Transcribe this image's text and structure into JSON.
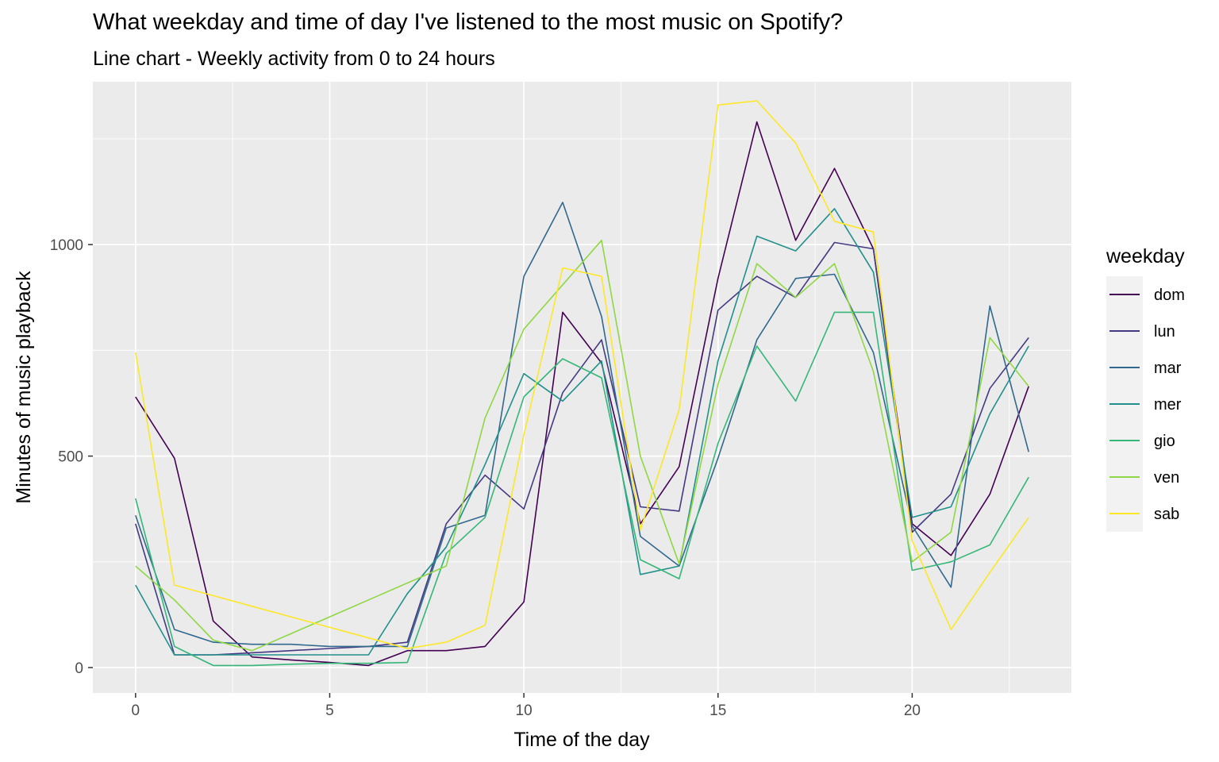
{
  "chart_data": {
    "type": "line",
    "title": "What weekday and time of day I've listened to the most music on Spotify?",
    "subtitle": "Line chart - Weekly activity from 0 to 24 hours",
    "xlabel": "Time of the day",
    "ylabel": "Minutes of music playback",
    "xlim": [
      -1.1,
      24.1
    ],
    "ylim": [
      -60,
      1385
    ],
    "x_ticks": [
      0,
      5,
      10,
      15,
      20
    ],
    "y_ticks": [
      0,
      500,
      1000
    ],
    "grid": true,
    "legend": {
      "title": "weekday",
      "position": "right"
    },
    "x": [
      0,
      1,
      2,
      3,
      4,
      5,
      6,
      7,
      8,
      9,
      10,
      11,
      12,
      13,
      14,
      15,
      16,
      17,
      18,
      19,
      20,
      21,
      22,
      23
    ],
    "series": [
      {
        "name": "dom",
        "color": "#440154",
        "values": [
          640,
          495,
          110,
          25,
          18,
          12,
          5,
          40,
          40,
          50,
          155,
          840,
          720,
          340,
          475,
          920,
          1290,
          1010,
          1180,
          990,
          340,
          265,
          410,
          665
        ]
      },
      {
        "name": "lun",
        "color": "#443A83",
        "values": [
          340,
          30,
          30,
          35,
          40,
          45,
          50,
          60,
          340,
          455,
          375,
          650,
          775,
          380,
          370,
          845,
          925,
          875,
          1005,
          990,
          320,
          410,
          660,
          780
        ]
      },
      {
        "name": "mar",
        "color": "#31688E",
        "values": [
          360,
          90,
          60,
          55,
          55,
          50,
          50,
          50,
          330,
          360,
          925,
          1100,
          830,
          310,
          240,
          495,
          775,
          920,
          930,
          745,
          335,
          190,
          855,
          510
        ]
      },
      {
        "name": "mer",
        "color": "#21908C",
        "values": [
          195,
          30,
          30,
          30,
          30,
          30,
          30,
          175,
          285,
          480,
          695,
          630,
          725,
          220,
          240,
          725,
          1020,
          985,
          1085,
          935,
          355,
          380,
          600,
          760
        ]
      },
      {
        "name": "gio",
        "color": "#35B779",
        "values": [
          400,
          50,
          5,
          5,
          8,
          10,
          10,
          12,
          270,
          355,
          640,
          730,
          685,
          255,
          210,
          530,
          760,
          630,
          840,
          840,
          230,
          250,
          290,
          450
        ]
      },
      {
        "name": "ven",
        "color": "#8FD744",
        "values": [
          240,
          160,
          65,
          40,
          80,
          120,
          160,
          200,
          240,
          590,
          800,
          905,
          1010,
          500,
          245,
          670,
          955,
          875,
          955,
          700,
          250,
          320,
          780,
          665
        ]
      },
      {
        "name": "sab",
        "color": "#FDE725",
        "values": [
          745,
          195,
          170,
          145,
          120,
          95,
          70,
          45,
          60,
          100,
          550,
          945,
          925,
          325,
          610,
          1330,
          1340,
          1240,
          1055,
          1030,
          300,
          90,
          225,
          355
        ]
      }
    ]
  }
}
